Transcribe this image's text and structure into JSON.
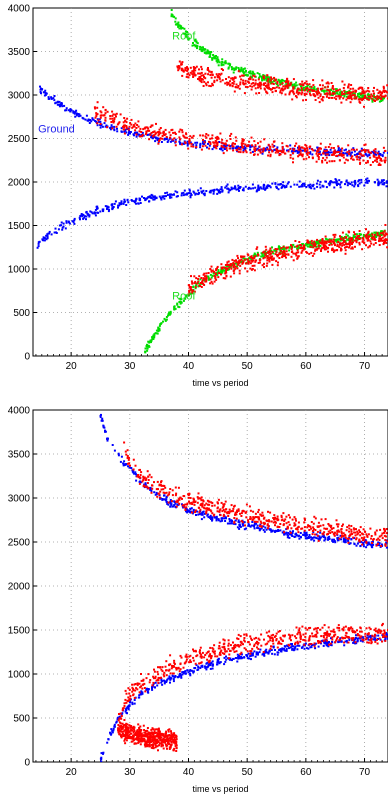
{
  "chart_data": [
    {
      "type": "scatter",
      "xlabel": "time vs period",
      "ylabel": "",
      "xlim": [
        13.5,
        74
      ],
      "ylim": [
        0,
        4000
      ],
      "xticks": [
        20,
        30,
        40,
        50,
        60,
        70
      ],
      "yticks": [
        0,
        500,
        1000,
        1500,
        2000,
        2500,
        3000,
        3500,
        4000
      ],
      "grid": true,
      "annotations": [
        {
          "text": "Roof",
          "x": 39.2,
          "y": 3640,
          "color": "#22dd22"
        },
        {
          "text": "Ground",
          "x": 17.5,
          "y": 2570,
          "color": "#2222ee"
        },
        {
          "text": "Roof",
          "x": 39.2,
          "y": 650,
          "color": "#22dd22"
        }
      ],
      "series": [
        {
          "color": "#0000ff",
          "x": [
            14,
            16,
            18,
            20,
            22,
            25,
            28,
            30,
            35,
            40,
            45,
            50,
            55,
            60,
            65,
            70,
            74
          ],
          "y": [
            3100,
            2990,
            2895,
            2810,
            2740,
            2660,
            2600,
            2560,
            2500,
            2450,
            2420,
            2390,
            2370,
            2355,
            2340,
            2330,
            2325
          ]
        },
        {
          "color": "#0000ff",
          "x": [
            14,
            16,
            18,
            20,
            22,
            25,
            28,
            30,
            35,
            40,
            45,
            50,
            55,
            60,
            65,
            70,
            74
          ],
          "y": [
            1270,
            1380,
            1470,
            1545,
            1610,
            1680,
            1740,
            1770,
            1830,
            1870,
            1905,
            1930,
            1950,
            1965,
            1978,
            1990,
            1995
          ]
        },
        {
          "color": "#00dd00",
          "x": [
            36.8,
            38,
            40,
            42,
            45,
            48,
            50,
            55,
            60,
            65,
            70,
            73.5
          ],
          "y": [
            4000,
            3820,
            3660,
            3540,
            3400,
            3300,
            3250,
            3150,
            3080,
            3030,
            2980,
            2950
          ]
        },
        {
          "color": "#00dd00",
          "x": [
            32.5,
            34,
            36,
            38,
            40,
            42,
            45,
            48,
            50,
            55,
            60,
            65,
            70,
            73.5
          ],
          "y": [
            50,
            220,
            420,
            580,
            720,
            840,
            960,
            1060,
            1110,
            1210,
            1280,
            1330,
            1380,
            1410
          ]
        },
        {
          "color": "#ff0000",
          "x": [
            24,
            28,
            30,
            35,
            40,
            45,
            50,
            55,
            60,
            65,
            70,
            74
          ],
          "y": [
            2810,
            2690,
            2640,
            2560,
            2500,
            2450,
            2400,
            2370,
            2340,
            2320,
            2300,
            2295
          ]
        },
        {
          "color": "#ff0000",
          "x": [
            38,
            40,
            42,
            45,
            48,
            50,
            55,
            60,
            65,
            70,
            74
          ],
          "y": [
            3350,
            3280,
            3240,
            3200,
            3160,
            3140,
            3100,
            3060,
            3030,
            3010,
            3000
          ]
        },
        {
          "color": "#ff0000",
          "x": [
            40,
            42,
            45,
            48,
            50,
            55,
            60,
            65,
            70,
            74
          ],
          "y": [
            800,
            880,
            960,
            1040,
            1090,
            1170,
            1240,
            1290,
            1330,
            1360
          ]
        }
      ]
    },
    {
      "type": "scatter",
      "xlabel": "time vs period",
      "ylabel": "",
      "xlim": [
        13.5,
        74
      ],
      "ylim": [
        0,
        4000
      ],
      "xticks": [
        20,
        30,
        40,
        50,
        60,
        70
      ],
      "yticks": [
        0,
        500,
        1000,
        1500,
        2000,
        2500,
        3000,
        3500,
        4000
      ],
      "grid": true,
      "annotations": [],
      "series": [
        {
          "color": "#0000ff",
          "x": [
            24.8,
            26,
            28,
            30,
            32,
            35,
            38,
            40,
            45,
            50,
            55,
            60,
            65,
            70,
            74
          ],
          "y": [
            4000,
            3700,
            3480,
            3320,
            3180,
            3020,
            2920,
            2860,
            2760,
            2690,
            2620,
            2570,
            2530,
            2490,
            2470
          ]
        },
        {
          "color": "#0000ff",
          "x": [
            25,
            26,
            27,
            28,
            30,
            32,
            35,
            38,
            40,
            45,
            50,
            55,
            60,
            65,
            70,
            74
          ],
          "y": [
            40,
            200,
            360,
            480,
            650,
            780,
            890,
            970,
            1030,
            1130,
            1210,
            1270,
            1320,
            1360,
            1400,
            1420
          ]
        },
        {
          "color": "#ff0000",
          "x": [
            29,
            30,
            32,
            35,
            38,
            40,
            45,
            50,
            55,
            60,
            65,
            70,
            74
          ],
          "y": [
            3600,
            3400,
            3250,
            3100,
            3000,
            2950,
            2880,
            2800,
            2740,
            2680,
            2620,
            2570,
            2540
          ]
        },
        {
          "color": "#ff0000",
          "x": [
            28,
            29,
            30,
            32,
            35,
            38,
            40,
            45,
            50,
            55,
            60,
            65,
            70,
            74
          ],
          "y": [
            500,
            650,
            760,
            880,
            1010,
            1100,
            1170,
            1270,
            1340,
            1390,
            1420,
            1440,
            1450,
            1455
          ]
        },
        {
          "color": "#ff0000",
          "x": [
            28,
            30,
            32,
            34,
            36,
            38
          ],
          "y": [
            380,
            320,
            290,
            270,
            250,
            240
          ]
        }
      ]
    }
  ]
}
